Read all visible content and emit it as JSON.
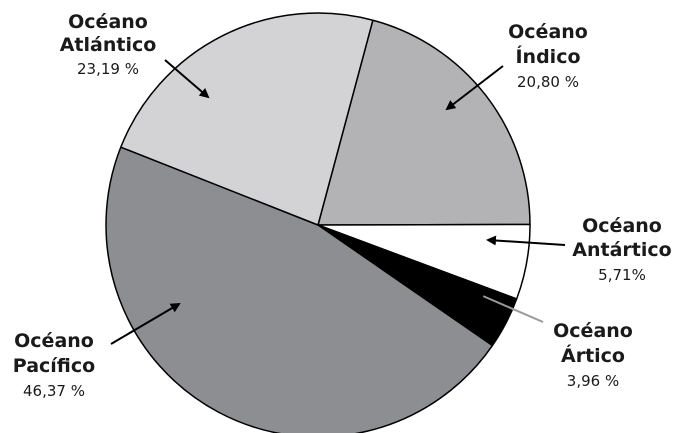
{
  "chart_data": {
    "type": "pie",
    "title": "",
    "slices": [
      {
        "key": "indico",
        "name_line1": "Océano",
        "name_line2": "Índico",
        "value": 20.8,
        "value_label": "20,80 %",
        "color": "#b3b3b5"
      },
      {
        "key": "antartico",
        "name_line1": "Océano",
        "name_line2": "Antártico",
        "value": 5.71,
        "value_label": "5,71%",
        "color": "#ffffff"
      },
      {
        "key": "artico",
        "name_line1": "Océano",
        "name_line2": "Ártico",
        "value": 3.96,
        "value_label": "3,96 %",
        "color": "#000000"
      },
      {
        "key": "pacifico",
        "name_line1": "Océano",
        "name_line2": "Pacífico",
        "value": 46.37,
        "value_label": "46,37 %",
        "color": "#8d8e92"
      },
      {
        "key": "atlantico",
        "name_line1": "Océano",
        "name_line2": "Atlántico",
        "value": 23.19,
        "value_label": "23,19 %",
        "color": "#d3d3d5"
      }
    ],
    "legend": "none",
    "label_style": "outside labels with arrows"
  }
}
